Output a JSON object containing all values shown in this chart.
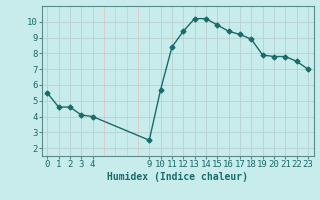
{
  "x": [
    0,
    1,
    2,
    3,
    4,
    9,
    10,
    11,
    12,
    13,
    14,
    15,
    16,
    17,
    18,
    19,
    20,
    21,
    22,
    23
  ],
  "y": [
    5.5,
    4.6,
    4.6,
    4.1,
    4.0,
    2.5,
    5.7,
    8.4,
    9.4,
    10.2,
    10.2,
    9.8,
    9.4,
    9.2,
    8.9,
    7.9,
    7.8,
    7.8,
    7.5,
    7.0
  ],
  "line_color": "#1a6b6b",
  "marker": "D",
  "marker_size": 2.5,
  "bg_color": "#c8ecec",
  "grid_major_color": "#b8d0d0",
  "grid_minor_color": "#e0c8c8",
  "xlabel": "Humidex (Indice chaleur)",
  "xlim": [
    -0.5,
    23.5
  ],
  "ylim": [
    1.5,
    10.75
  ],
  "xticks": [
    0,
    1,
    2,
    3,
    4,
    9,
    10,
    11,
    12,
    13,
    14,
    15,
    16,
    17,
    18,
    19,
    20,
    21,
    22,
    23
  ],
  "yticks": [
    2,
    3,
    4,
    5,
    6,
    7,
    8,
    9,
    10
  ],
  "xlabel_fontsize": 7,
  "tick_fontsize": 6.5,
  "axis_color": "#1a6b6b",
  "spine_color": "#5a8a8a",
  "linewidth": 1.0
}
